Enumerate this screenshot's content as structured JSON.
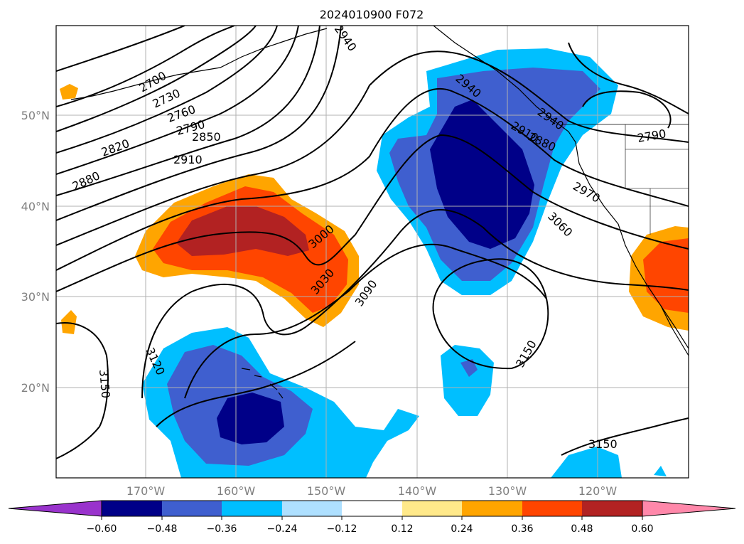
{
  "title": "2024010900 F072",
  "map": {
    "lat_labels": [
      "50°N",
      "40°N",
      "30°N",
      "20°N"
    ],
    "lon_labels": [
      "170°W",
      "160°W",
      "150°W",
      "140°W",
      "130°W",
      "120°W"
    ],
    "contour_labels": [
      "2700",
      "2730",
      "2760",
      "2790",
      "2820",
      "2850",
      "2880",
      "2910",
      "2940",
      "2940",
      "2940",
      "2910",
      "2880",
      "2790",
      "2970",
      "3000",
      "3030",
      "3060",
      "3090",
      "3120",
      "3150",
      "3150",
      "3150"
    ]
  },
  "colorbar": {
    "ticks": [
      "−0.60",
      "−0.48",
      "−0.36",
      "−0.24",
      "−0.12",
      "0.12",
      "0.24",
      "0.36",
      "0.48",
      "0.60"
    ],
    "colors": [
      "#9933cc",
      "#000088",
      "#3f5fcf",
      "#00bfff",
      "#aee0ff",
      "#ffffff",
      "#ffe98a",
      "#ffa500",
      "#ff4500",
      "#b22222",
      "#ff88aa"
    ]
  }
}
